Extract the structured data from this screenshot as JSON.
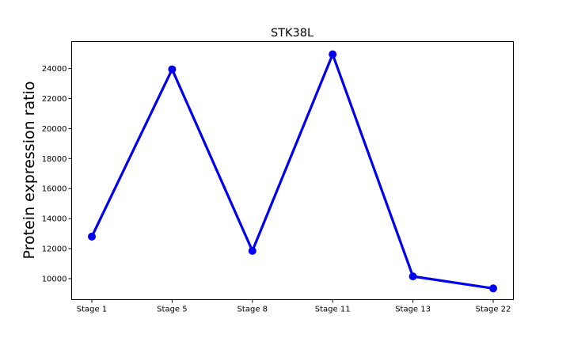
{
  "chart_data": {
    "type": "line",
    "title": "STK38L",
    "xlabel": "",
    "ylabel": "Protein expression ratio",
    "categories": [
      "Stage 1",
      "Stage 5",
      "Stage 8",
      "Stage 11",
      "Stage 13",
      "Stage 22"
    ],
    "series": [
      {
        "values": [
          12800,
          23950,
          11850,
          24950,
          10150,
          9350
        ],
        "color": "#0000ee"
      }
    ],
    "ylim": [
      8600,
      25800
    ],
    "yticks": [
      10000,
      12000,
      14000,
      16000,
      18000,
      20000,
      22000,
      24000
    ],
    "grid": false,
    "marker": "circle"
  }
}
